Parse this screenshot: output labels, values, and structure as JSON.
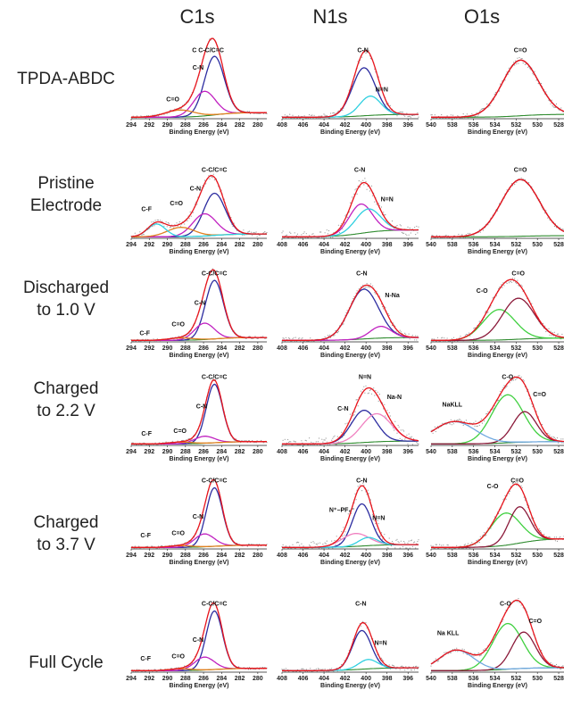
{
  "column_titles": [
    "C1s",
    "N1s",
    "O1s"
  ],
  "rows": [
    {
      "label_lines": [
        "TPDA-ABDC"
      ]
    },
    {
      "label_lines": [
        "Pristine",
        "Electrode"
      ]
    },
    {
      "label_lines": [
        "Discharged",
        "to 1.0 V"
      ]
    },
    {
      "label_lines": [
        "Charged",
        "to 2.2 V"
      ]
    },
    {
      "label_lines": [
        "Charged",
        "to 3.7 V"
      ]
    },
    {
      "label_lines": [
        "Full Cycle"
      ]
    }
  ],
  "chart_data": {
    "type": "line",
    "xlabel": "Binding Energy (eV)",
    "axes": {
      "C1s": {
        "xlim": [
          294,
          279
        ],
        "ticks": [
          294,
          292,
          290,
          288,
          286,
          284,
          282,
          280
        ]
      },
      "N1s": {
        "xlim": [
          408,
          395
        ],
        "ticks": [
          408,
          406,
          404,
          402,
          400,
          398,
          396
        ]
      },
      "O1s": {
        "xlim": [
          540,
          527.5
        ],
        "ticks": [
          540,
          538,
          536,
          534,
          532,
          530,
          528
        ]
      }
    },
    "colors": {
      "envelope": "#e8141c",
      "baseline": "#2e8b2e",
      "blue": "#2c2ca0",
      "magenta": "#c020c0",
      "orange": "#e08020",
      "cyan": "#30d0e0",
      "green": "#40d040",
      "lightblue": "#70a8e0",
      "pink": "#f080c0",
      "darkred": "#8b1a3a",
      "raw": "#999999"
    },
    "panels": [
      [
        {
          "baseline": 0.08,
          "noise": 0.02,
          "peaks": [
            {
              "c": 284.8,
              "w": 1.1,
              "h": 1.0,
              "color": "#2c2ca0"
            },
            {
              "c": 285.9,
              "w": 1.2,
              "h": 0.42,
              "color": "#c020c0"
            },
            {
              "c": 288.6,
              "w": 1.6,
              "h": 0.12,
              "color": "#e08020"
            }
          ],
          "labels": [
            {
              "text": "C C-C/C=C",
              "x": 285.5,
              "y": 1.12
            },
            {
              "text": "C-N",
              "x": 286.6,
              "y": 0.82
            },
            {
              "text": "C=O",
              "x": 289.4,
              "y": 0.28
            }
          ]
        },
        {
          "baseline": 0.05,
          "noise": 0.05,
          "peaks": [
            {
              "c": 400.2,
              "w": 1.1,
              "h": 0.82,
              "color": "#2c2ca0"
            },
            {
              "c": 399.6,
              "w": 1.0,
              "h": 0.33,
              "color": "#30d0e0"
            }
          ],
          "labels": [
            {
              "text": "C-N",
              "x": 400.3,
              "y": 1.12
            },
            {
              "text": "N=N",
              "x": 398.5,
              "y": 0.45
            }
          ]
        },
        {
          "baseline": 0.05,
          "noise": 0.05,
          "peaks": [
            {
              "c": 531.6,
              "w": 1.7,
              "h": 0.95,
              "color": "#8b1a3a"
            }
          ],
          "labels": [
            {
              "text": "C=O",
              "x": 531.6,
              "y": 1.12
            }
          ]
        }
      ],
      [
        {
          "baseline": 0.05,
          "noise": 0.05,
          "peaks": [
            {
              "c": 284.8,
              "w": 1.2,
              "h": 0.72,
              "color": "#2c2ca0"
            },
            {
              "c": 285.9,
              "w": 1.3,
              "h": 0.38,
              "color": "#c020c0"
            },
            {
              "c": 288.5,
              "w": 1.5,
              "h": 0.16,
              "color": "#e08020"
            },
            {
              "c": 291.2,
              "w": 1.0,
              "h": 0.22,
              "color": "#30d0e0"
            }
          ],
          "labels": [
            {
              "text": "C-C/C=C",
              "x": 284.8,
              "y": 1.12
            },
            {
              "text": "C-N",
              "x": 286.9,
              "y": 0.8
            },
            {
              "text": "C=O",
              "x": 289.0,
              "y": 0.55
            },
            {
              "text": "C-F",
              "x": 292.3,
              "y": 0.45
            }
          ]
        },
        {
          "baseline": 0.12,
          "noise": 0.1,
          "peaks": [
            {
              "c": 400.5,
              "w": 1.1,
              "h": 0.5,
              "color": "#c020c0"
            },
            {
              "c": 399.8,
              "w": 1.2,
              "h": 0.4,
              "color": "#30d0e0"
            }
          ],
          "labels": [
            {
              "text": "C-N",
              "x": 400.6,
              "y": 1.12
            },
            {
              "text": "N=N",
              "x": 398.0,
              "y": 0.62
            }
          ]
        },
        {
          "baseline": 0.02,
          "noise": 0.04,
          "peaks": [
            {
              "c": 531.6,
              "w": 1.8,
              "h": 0.97,
              "color": "#8b1a3a"
            }
          ],
          "labels": [
            {
              "text": "C=O",
              "x": 531.6,
              "y": 1.12
            }
          ]
        }
      ],
      [
        {
          "baseline": 0.05,
          "noise": 0.02,
          "peaks": [
            {
              "c": 284.8,
              "w": 1.0,
              "h": 1.0,
              "color": "#2c2ca0"
            },
            {
              "c": 285.9,
              "w": 1.1,
              "h": 0.28,
              "color": "#c020c0"
            },
            {
              "c": 288.5,
              "w": 1.4,
              "h": 0.04,
              "color": "#e08020"
            }
          ],
          "labels": [
            {
              "text": "C-C/C=C",
              "x": 284.8,
              "y": 1.12
            },
            {
              "text": "C-N",
              "x": 286.4,
              "y": 0.62
            },
            {
              "text": "C=O",
              "x": 288.8,
              "y": 0.25
            },
            {
              "text": "C-F",
              "x": 292.5,
              "y": 0.1
            }
          ]
        },
        {
          "baseline": 0.05,
          "noise": 0.05,
          "peaks": [
            {
              "c": 400.2,
              "w": 1.4,
              "h": 0.85,
              "color": "#2c2ca0"
            },
            {
              "c": 398.6,
              "w": 1.0,
              "h": 0.2,
              "color": "#c020c0"
            }
          ],
          "labels": [
            {
              "text": "C-N",
              "x": 400.4,
              "y": 1.12
            },
            {
              "text": "N-Na",
              "x": 397.5,
              "y": 0.75
            }
          ]
        },
        {
          "baseline": 0.04,
          "noise": 0.05,
          "peaks": [
            {
              "c": 533.6,
              "w": 1.5,
              "h": 0.52,
              "color": "#40d040"
            },
            {
              "c": 531.8,
              "w": 1.5,
              "h": 0.7,
              "color": "#8b1a3a"
            }
          ],
          "labels": [
            {
              "text": "C-O",
              "x": 535.2,
              "y": 0.82
            },
            {
              "text": "C=O",
              "x": 531.8,
              "y": 1.12
            }
          ]
        }
      ],
      [
        {
          "baseline": 0.04,
          "noise": 0.02,
          "peaks": [
            {
              "c": 284.8,
              "w": 0.9,
              "h": 1.0,
              "color": "#2c2ca0"
            },
            {
              "c": 285.9,
              "w": 1.1,
              "h": 0.12,
              "color": "#c020c0"
            },
            {
              "c": 288.5,
              "w": 1.3,
              "h": 0.03,
              "color": "#e08020"
            }
          ],
          "labels": [
            {
              "text": "C-C/C=C",
              "x": 284.8,
              "y": 1.12
            },
            {
              "text": "C-N",
              "x": 286.2,
              "y": 0.62
            },
            {
              "text": "C=O",
              "x": 288.6,
              "y": 0.2
            },
            {
              "text": "C-F",
              "x": 292.3,
              "y": 0.15
            }
          ]
        },
        {
          "baseline": 0.05,
          "noise": 0.1,
          "peaks": [
            {
              "c": 400.2,
              "w": 1.2,
              "h": 0.55,
              "color": "#2c2ca0"
            },
            {
              "c": 399.0,
              "w": 1.4,
              "h": 0.48,
              "color": "#f080c0"
            }
          ],
          "labels": [
            {
              "text": "N=N",
              "x": 400.1,
              "y": 1.12
            },
            {
              "text": "C-N",
              "x": 402.2,
              "y": 0.58
            },
            {
              "text": "Na-N",
              "x": 397.3,
              "y": 0.78
            }
          ]
        },
        {
          "baseline": 0.04,
          "noise": 0.05,
          "peaks": [
            {
              "c": 532.8,
              "w": 1.5,
              "h": 0.82,
              "color": "#40d040"
            },
            {
              "c": 531.2,
              "w": 1.1,
              "h": 0.52,
              "color": "#8b1a3a"
            },
            {
              "c": 537.8,
              "w": 2.0,
              "h": 0.38,
              "color": "#70a8e0"
            }
          ],
          "labels": [
            {
              "text": "C-O",
              "x": 532.8,
              "y": 1.12
            },
            {
              "text": "C=O",
              "x": 529.8,
              "y": 0.82
            },
            {
              "text": "NaKLL",
              "x": 538.0,
              "y": 0.65
            }
          ]
        }
      ],
      [
        {
          "baseline": 0.04,
          "noise": 0.02,
          "peaks": [
            {
              "c": 284.8,
              "w": 0.9,
              "h": 1.0,
              "color": "#2c2ca0"
            },
            {
              "c": 285.9,
              "w": 1.1,
              "h": 0.22,
              "color": "#c020c0"
            },
            {
              "c": 288.5,
              "w": 1.3,
              "h": 0.03,
              "color": "#e08020"
            }
          ],
          "labels": [
            {
              "text": "C-C/C=C",
              "x": 284.8,
              "y": 1.12
            },
            {
              "text": "C-N",
              "x": 286.6,
              "y": 0.5
            },
            {
              "text": "C=O",
              "x": 288.8,
              "y": 0.22
            },
            {
              "text": "C-F",
              "x": 292.4,
              "y": 0.18
            }
          ]
        },
        {
          "baseline": 0.05,
          "noise": 0.1,
          "peaks": [
            {
              "c": 400.4,
              "w": 0.9,
              "h": 0.72,
              "color": "#2c2ca0"
            },
            {
              "c": 401.0,
              "w": 1.3,
              "h": 0.22,
              "color": "#f080c0"
            },
            {
              "c": 399.8,
              "w": 0.9,
              "h": 0.14,
              "color": "#30d0e0"
            }
          ],
          "labels": [
            {
              "text": "C-N",
              "x": 400.4,
              "y": 1.12
            },
            {
              "text": "N⁺–PF₆⁻",
              "x": 402.3,
              "y": 0.62
            },
            {
              "text": "N=N",
              "x": 398.8,
              "y": 0.48
            }
          ]
        },
        {
          "baseline": 0.15,
          "noise": 0.05,
          "peaks": [
            {
              "c": 533.0,
              "w": 1.4,
              "h": 0.55,
              "color": "#40d040"
            },
            {
              "c": 531.7,
              "w": 1.0,
              "h": 0.62,
              "color": "#8b1a3a"
            }
          ],
          "labels": [
            {
              "text": "C-O",
              "x": 534.2,
              "y": 1.02
            },
            {
              "text": "C=O",
              "x": 531.9,
              "y": 1.12
            }
          ]
        }
      ],
      [
        {
          "baseline": 0.04,
          "noise": 0.02,
          "peaks": [
            {
              "c": 284.8,
              "w": 0.9,
              "h": 1.0,
              "color": "#2c2ca0"
            },
            {
              "c": 285.9,
              "w": 1.1,
              "h": 0.22,
              "color": "#c020c0"
            },
            {
              "c": 288.5,
              "w": 1.3,
              "h": 0.03,
              "color": "#e08020"
            }
          ],
          "labels": [
            {
              "text": "C-C/C=C",
              "x": 284.8,
              "y": 1.12
            },
            {
              "text": "C-N",
              "x": 286.6,
              "y": 0.5
            },
            {
              "text": "C=O",
              "x": 288.8,
              "y": 0.22
            },
            {
              "text": "C-F",
              "x": 292.4,
              "y": 0.18
            }
          ]
        },
        {
          "baseline": 0.05,
          "noise": 0.04,
          "peaks": [
            {
              "c": 400.4,
              "w": 0.9,
              "h": 0.66,
              "color": "#2c2ca0"
            },
            {
              "c": 399.8,
              "w": 0.9,
              "h": 0.16,
              "color": "#30d0e0"
            }
          ],
          "labels": [
            {
              "text": "C-N",
              "x": 400.5,
              "y": 1.12
            },
            {
              "text": "N=N",
              "x": 398.6,
              "y": 0.45
            }
          ]
        },
        {
          "baseline": 0.05,
          "noise": 0.04,
          "peaks": [
            {
              "c": 532.8,
              "w": 1.4,
              "h": 0.78,
              "color": "#40d040"
            },
            {
              "c": 531.3,
              "w": 1.1,
              "h": 0.62,
              "color": "#8b1a3a"
            },
            {
              "c": 537.6,
              "w": 1.6,
              "h": 0.35,
              "color": "#70a8e0"
            }
          ],
          "labels": [
            {
              "text": "C-O",
              "x": 533.0,
              "y": 1.12
            },
            {
              "text": "C=O",
              "x": 530.2,
              "y": 0.82
            },
            {
              "text": "Na KLL",
              "x": 538.4,
              "y": 0.62
            }
          ]
        }
      ]
    ]
  }
}
